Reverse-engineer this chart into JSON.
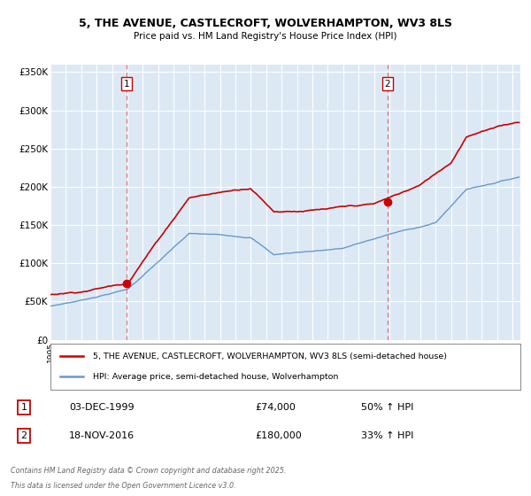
{
  "title": "5, THE AVENUE, CASTLECROFT, WOLVERHAMPTON, WV3 8LS",
  "subtitle": "Price paid vs. HM Land Registry's House Price Index (HPI)",
  "bg_color": "#ffffff",
  "plot_bg_color": "#dce9f5",
  "red_color": "#cc0000",
  "blue_color": "#6699cc",
  "dashed_color": "#e87070",
  "ylim": [
    0,
    360000
  ],
  "yticks": [
    0,
    50000,
    100000,
    150000,
    200000,
    250000,
    300000,
    350000
  ],
  "x_start_year": 1995,
  "x_end_year": 2025,
  "transaction1": {
    "year": 1999.92,
    "price": 74000,
    "label": "1",
    "date": "03-DEC-1999",
    "hpi_pct": "50% ↑ HPI"
  },
  "transaction2": {
    "year": 2016.88,
    "price": 180000,
    "label": "2",
    "date": "18-NOV-2016",
    "hpi_pct": "33% ↑ HPI"
  },
  "legend_line1": "5, THE AVENUE, CASTLECROFT, WOLVERHAMPTON, WV3 8LS (semi-detached house)",
  "legend_line2": "HPI: Average price, semi-detached house, Wolverhampton",
  "footnote": "Contains HM Land Registry data © Crown copyright and database right 2025.\nThis data is licensed under the Open Government Licence v3.0.",
  "grid_color": "#ffffff"
}
